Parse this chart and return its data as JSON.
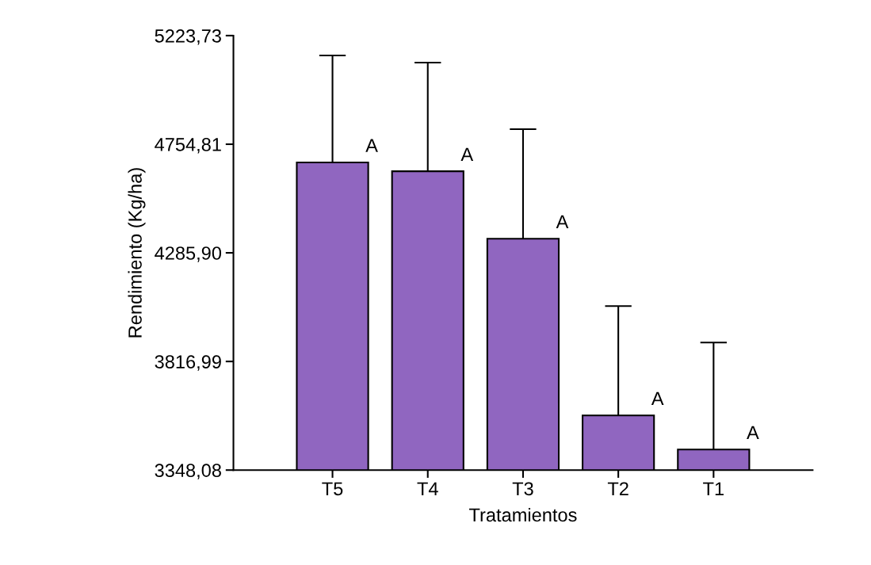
{
  "chart_data": {
    "type": "bar",
    "xlabel": "Tratamientos",
    "ylabel": "Rendimiento (Kg/ha)",
    "categories": [
      "T5",
      "T4",
      "T3",
      "T2",
      "T1"
    ],
    "values": [
      4676,
      4638,
      4347,
      3584,
      3437
    ],
    "errors": [
      462,
      469,
      473,
      472,
      462
    ],
    "color": "#9066c0",
    "ylim": [
      3348.08,
      5223.73
    ],
    "yticks": [
      {
        "value": 3348.08,
        "label": "3348,08"
      },
      {
        "value": 3816.99,
        "label": "3816,99"
      },
      {
        "value": 4285.9,
        "label": "4285,90"
      },
      {
        "value": 4754.81,
        "label": "4754,81"
      },
      {
        "value": 5223.73,
        "label": "5223,73"
      }
    ],
    "grid": false,
    "legend": false,
    "annotations": [
      {
        "text": "A",
        "x": "T5",
        "y": 4676
      },
      {
        "text": "A",
        "x": "T4",
        "y": 4638
      },
      {
        "text": "A",
        "x": "T3",
        "y": 4347
      },
      {
        "text": "A",
        "x": "T2",
        "y": 3584
      },
      {
        "text": "A",
        "x": "T1",
        "y": 3437
      }
    ]
  }
}
